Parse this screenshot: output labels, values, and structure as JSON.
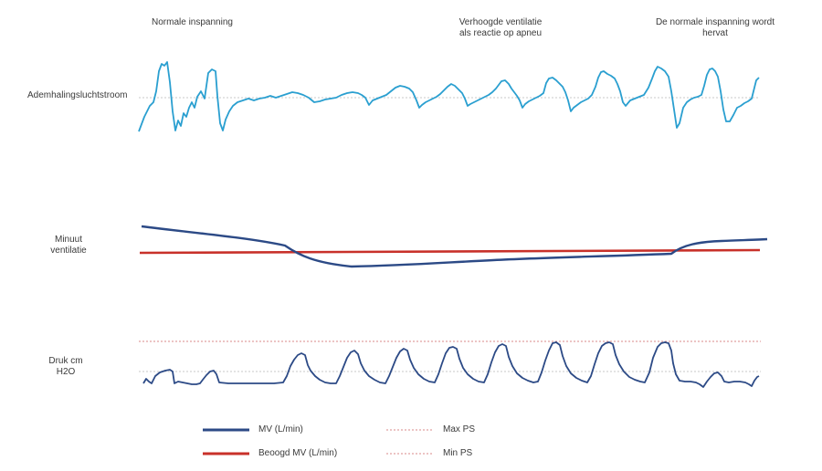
{
  "annotations": {
    "normal_effort": "Normale inspanning",
    "increased_ventilation": "Verhoogde ventilatie\nals reactie op apneu",
    "normal_resumes": "De normale inspanning wordt\nhervat"
  },
  "rows": {
    "airflow": "Ademhalingsluchtstroom",
    "minute_ventilation": "Minuut\nventilatie",
    "pressure": "Druk cm\nH2O"
  },
  "legend": {
    "mv": "MV (L/min)",
    "target_mv": "Beoogd MV (L/min)",
    "max_ps": "Max PS",
    "min_ps": "Min PS"
  },
  "colors": {
    "airflow": "#2a9fd0",
    "mv": "#2c4a86",
    "target_mv": "#c8312a",
    "pressure": "#2c4a86",
    "ref_line": "#d98a8a",
    "baseline": "#c8c8c8"
  }
}
